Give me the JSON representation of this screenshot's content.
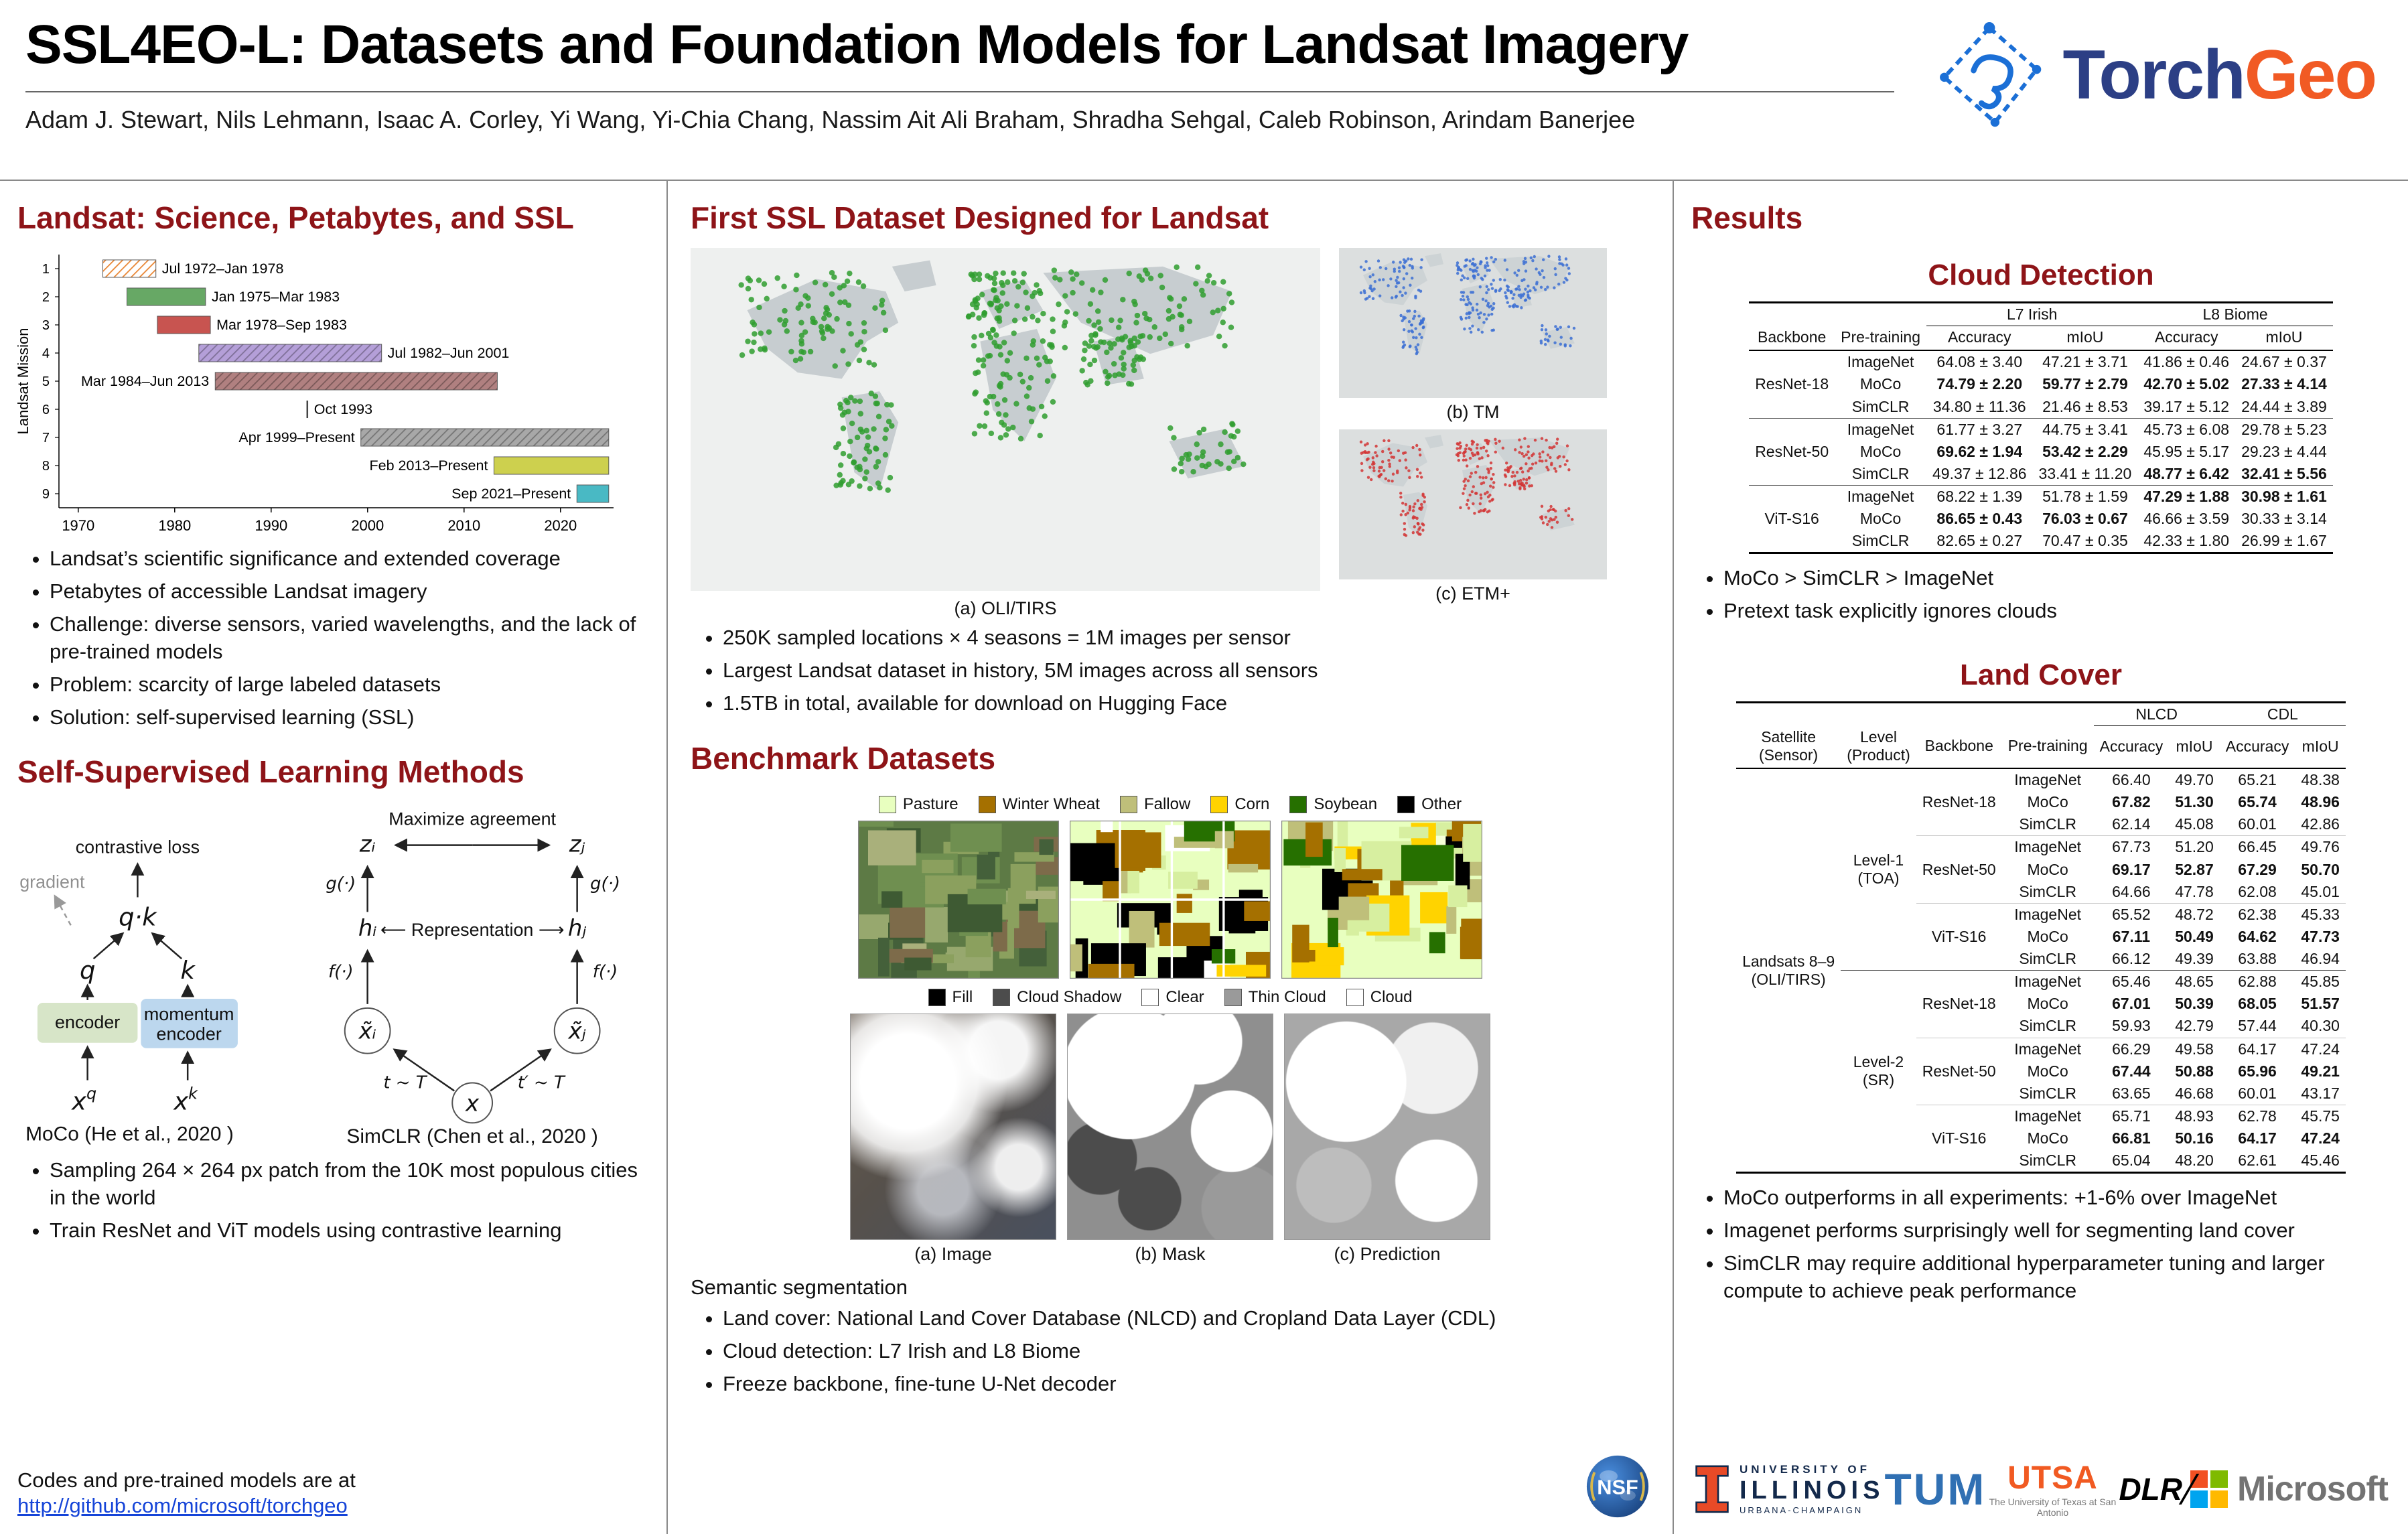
{
  "header": {
    "title": "SSL4EO-L: Datasets and Foundation Models for Landsat Imagery",
    "authors": "Adam J. Stewart, Nils Lehmann, Isaac A. Corley, Yi Wang, Yi-Chia Chang, Nassim Ait Ali Braham, Shradha Sehgal, Caleb Robinson, Arindam Banerjee",
    "torchgeo": {
      "part1": "Torch",
      "part2": "Geo"
    }
  },
  "colors": {
    "heading": "#8e1418",
    "link": "#1544d8",
    "torch_blue": "#2c3f85",
    "geo_orange": "#f15a24",
    "illinois_orange": "#E84A27",
    "illinois_navy": "#13294B",
    "tum_blue": "#3070B3",
    "utsa_orange": "#F15A22",
    "microsoft_squares": [
      "#f25022",
      "#7fba00",
      "#00a4ef",
      "#ffb900"
    ]
  },
  "left": {
    "section1": "Landsat: Science, Petabytes, and SSL",
    "bullets1": [
      "Landsat’s scientific significance and extended coverage",
      "Petabytes of accessible Landsat imagery",
      "Challenge: diverse sensors, varied wavelengths, and the lack of pre-trained models",
      "Problem: scarcity of large labeled datasets",
      "Solution: self-supervised learning (SSL)"
    ],
    "section2": "Self-Supervised Learning Methods",
    "moco": {
      "loss": "contrastive loss",
      "gradient": "gradient",
      "qk": "q·k",
      "q": "q",
      "k": "k",
      "encoder": "encoder",
      "momentum1": "momentum",
      "momentum2": "encoder",
      "x": "x",
      "supq": "q",
      "supk": "k",
      "caption": "MoCo (He et al., 2020 )"
    },
    "simclr": {
      "maximize": "Maximize agreement",
      "zi": "zᵢ",
      "zj": "zⱼ",
      "g1": "g(·)",
      "g2": "g(·)",
      "hi": "hᵢ",
      "hj": "hⱼ",
      "repr": "⟵ Representation ⟶",
      "f1": "f(·)",
      "f2": "f(·)",
      "xi": "x̃ᵢ",
      "xj": "x̃ⱼ",
      "x": "x",
      "t1": "t ~ T",
      "t2": "t′ ~ T",
      "caption": "SimCLR (Chen et al., 2020 )"
    },
    "bullets2": [
      "Sampling 264 × 264 px patch from the 10K most populous cities in the world",
      "Train ResNet and ViT models using contrastive learning"
    ],
    "codes_text": "Codes and pre-trained models are at",
    "codes_link": "http://github.com/microsoft/torchgeo"
  },
  "chart_data": {
    "type": "gantt",
    "title": "Landsat missions timeline",
    "ylabel": "Landsat Mission",
    "x_ticks": [
      1970,
      1980,
      1990,
      2000,
      2010,
      2020
    ],
    "x_range": [
      1968,
      2025.5
    ],
    "bars": [
      {
        "mission": 1,
        "start": 1972.55,
        "end": 1978.05,
        "label": "Jul 1972–Jan 1978",
        "color": "#e8832f",
        "hatch": "light",
        "side": "right"
      },
      {
        "mission": 2,
        "start": 1975.05,
        "end": 1983.2,
        "label": "Jan 1975–Mar 1983",
        "color": "#67a865",
        "hatch": "none",
        "side": "right"
      },
      {
        "mission": 3,
        "start": 1978.2,
        "end": 1983.7,
        "label": "Mar 1978–Sep 1983",
        "color": "#c85450",
        "hatch": "none",
        "side": "right"
      },
      {
        "mission": 4,
        "start": 1982.5,
        "end": 2001.45,
        "label": "Jul 1982–Jun 2001",
        "color": "#b49fd8",
        "hatch": "dark",
        "side": "right"
      },
      {
        "mission": 5,
        "start": 1984.2,
        "end": 2013.45,
        "label": "Mar 1984–Jun 2013",
        "color": "#b08080",
        "hatch": "dark",
        "side": "left"
      },
      {
        "mission": 6,
        "start": 1993.75,
        "end": 1993.75,
        "label": "Oct 1993",
        "color": "#444444",
        "hatch": "none",
        "side": "right",
        "point": true
      },
      {
        "mission": 7,
        "start": 1999.3,
        "end": 2025.0,
        "label": "Apr 1999–Present",
        "color": "#a8a8a8",
        "hatch": "dark",
        "side": "left"
      },
      {
        "mission": 8,
        "start": 2013.1,
        "end": 2025.0,
        "label": "Feb 2013–Present",
        "color": "#cdd04e",
        "hatch": "none",
        "side": "left"
      },
      {
        "mission": 9,
        "start": 2021.7,
        "end": 2025.0,
        "label": "Sep 2021–Present",
        "color": "#49b9c4",
        "hatch": "none",
        "side": "left"
      }
    ]
  },
  "middle": {
    "section1": "First SSL Dataset Designed for Landsat",
    "caption_a": "(a) OLI/TIRS",
    "caption_b": "(b) TM",
    "caption_c": "(c) ETM+",
    "bullets1": [
      "250K sampled locations × 4 seasons = 1M images per sensor",
      "Largest Landsat dataset in history, 5M images across all sensors",
      "1.5TB in total, available for download on Hugging Face"
    ],
    "section2": "Benchmark Datasets",
    "legend_landcover": [
      {
        "label": "Pasture",
        "color": "#e8ffbf"
      },
      {
        "label": "Winter Wheat",
        "color": "#a57000"
      },
      {
        "label": "Fallow",
        "color": "#bfbf7a"
      },
      {
        "label": "Corn",
        "color": "#ffd300"
      },
      {
        "label": "Soybean",
        "color": "#267000"
      },
      {
        "label": "Other",
        "color": "#000000"
      }
    ],
    "legend_cloud": [
      {
        "label": "Fill",
        "color": "#000000"
      },
      {
        "label": "Cloud Shadow",
        "color": "#4c4c4c"
      },
      {
        "label": "Clear",
        "color": "#ffffff"
      },
      {
        "label": "Thin Cloud",
        "color": "#9a9a9a"
      },
      {
        "label": "Cloud",
        "color": "#ffffff"
      }
    ],
    "cloud_captions": [
      "(a) Image",
      "(b) Mask",
      "(c) Prediction"
    ],
    "semantic_title": "Semantic segmentation",
    "bullets2": [
      "Land cover: National Land Cover Database (NLCD) and Cropland Data Layer (CDL)",
      "Cloud detection: L7 Irish and L8 Biome",
      "Freeze backbone, fine-tune U-Net decoder"
    ]
  },
  "right": {
    "section": "Results",
    "cloud_title": "Cloud Detection",
    "cloud_table": {
      "col1": "Backbone",
      "col2": "Pre-training",
      "groups_header": [
        "L7 Irish",
        "L8 Biome"
      ],
      "value_cols": [
        "Accuracy",
        "mIoU",
        "Accuracy",
        "mIoU"
      ],
      "groups": [
        {
          "backbone": "ResNet-18",
          "rows": [
            {
              "pre": "ImageNet",
              "vals": [
                "64.08 ± 3.40",
                "47.21 ± 3.71",
                "41.86 ± 0.46",
                "24.67 ± 0.37"
              ],
              "bold": [
                0,
                0,
                0,
                0
              ]
            },
            {
              "pre": "MoCo",
              "vals": [
                "74.79 ± 2.20",
                "59.77 ± 2.79",
                "42.70 ± 5.02",
                "27.33 ± 4.14"
              ],
              "bold": [
                1,
                1,
                1,
                1
              ]
            },
            {
              "pre": "SimCLR",
              "vals": [
                "34.80 ± 11.36",
                "21.46 ± 8.53",
                "39.17 ± 5.12",
                "24.44 ± 3.89"
              ],
              "bold": [
                0,
                0,
                0,
                0
              ]
            }
          ]
        },
        {
          "backbone": "ResNet-50",
          "rows": [
            {
              "pre": "ImageNet",
              "vals": [
                "61.77 ± 3.27",
                "44.75 ± 3.41",
                "45.73 ± 6.08",
                "29.78 ± 5.23"
              ],
              "bold": [
                0,
                0,
                0,
                0
              ]
            },
            {
              "pre": "MoCo",
              "vals": [
                "69.62 ± 1.94",
                "53.42 ± 2.29",
                "45.95 ± 5.17",
                "29.23 ± 4.44"
              ],
              "bold": [
                1,
                1,
                0,
                0
              ]
            },
            {
              "pre": "SimCLR",
              "vals": [
                "49.37 ± 12.86",
                "33.41 ± 11.20",
                "48.77 ± 6.42",
                "32.41 ± 5.56"
              ],
              "bold": [
                0,
                0,
                1,
                1
              ]
            }
          ]
        },
        {
          "backbone": "ViT-S16",
          "rows": [
            {
              "pre": "ImageNet",
              "vals": [
                "68.22 ± 1.39",
                "51.78 ± 1.59",
                "47.29 ± 1.88",
                "30.98 ± 1.61"
              ],
              "bold": [
                0,
                0,
                1,
                1
              ]
            },
            {
              "pre": "MoCo",
              "vals": [
                "86.65 ± 0.43",
                "76.03 ± 0.67",
                "46.66 ± 3.59",
                "30.33 ± 3.14"
              ],
              "bold": [
                1,
                1,
                0,
                0
              ]
            },
            {
              "pre": "SimCLR",
              "vals": [
                "82.65 ± 0.27",
                "70.47 ± 0.35",
                "42.33 ± 1.80",
                "26.99 ± 1.67"
              ],
              "bold": [
                0,
                0,
                0,
                0
              ]
            }
          ]
        }
      ]
    },
    "cloud_bullets": [
      "MoCo > SimCLR > ImageNet",
      "Pretext task explicitly ignores clouds"
    ],
    "lc_title": "Land Cover",
    "lc_table": {
      "header": {
        "satellite": "Satellite\n(Sensor)",
        "level": "Level\n(Product)",
        "backbone": "Backbone",
        "pre": "Pre-training",
        "groups": [
          "NLCD",
          "CDL"
        ],
        "value_cols": [
          "Accuracy",
          "mIoU",
          "Accuracy",
          "mIoU"
        ]
      },
      "satellite": "Landsats 8–9\n(OLI/TIRS)",
      "levels": [
        {
          "level": "Level-1\n(TOA)",
          "groups": [
            {
              "backbone": "ResNet-18",
              "rows": [
                {
                  "pre": "ImageNet",
                  "vals": [
                    "66.40",
                    "49.70",
                    "65.21",
                    "48.38"
                  ],
                  "bold": [
                    0,
                    0,
                    0,
                    0
                  ]
                },
                {
                  "pre": "MoCo",
                  "vals": [
                    "67.82",
                    "51.30",
                    "65.74",
                    "48.96"
                  ],
                  "bold": [
                    1,
                    1,
                    1,
                    1
                  ]
                },
                {
                  "pre": "SimCLR",
                  "vals": [
                    "62.14",
                    "45.08",
                    "60.01",
                    "42.86"
                  ],
                  "bold": [
                    0,
                    0,
                    0,
                    0
                  ]
                }
              ]
            },
            {
              "backbone": "ResNet-50",
              "rows": [
                {
                  "pre": "ImageNet",
                  "vals": [
                    "67.73",
                    "51.20",
                    "66.45",
                    "49.76"
                  ],
                  "bold": [
                    0,
                    0,
                    0,
                    0
                  ]
                },
                {
                  "pre": "MoCo",
                  "vals": [
                    "69.17",
                    "52.87",
                    "67.29",
                    "50.70"
                  ],
                  "bold": [
                    1,
                    1,
                    1,
                    1
                  ]
                },
                {
                  "pre": "SimCLR",
                  "vals": [
                    "64.66",
                    "47.78",
                    "62.08",
                    "45.01"
                  ],
                  "bold": [
                    0,
                    0,
                    0,
                    0
                  ]
                }
              ]
            },
            {
              "backbone": "ViT-S16",
              "rows": [
                {
                  "pre": "ImageNet",
                  "vals": [
                    "65.52",
                    "48.72",
                    "62.38",
                    "45.33"
                  ],
                  "bold": [
                    0,
                    0,
                    0,
                    0
                  ]
                },
                {
                  "pre": "MoCo",
                  "vals": [
                    "67.11",
                    "50.49",
                    "64.62",
                    "47.73"
                  ],
                  "bold": [
                    1,
                    1,
                    1,
                    1
                  ]
                },
                {
                  "pre": "SimCLR",
                  "vals": [
                    "66.12",
                    "49.39",
                    "63.88",
                    "46.94"
                  ],
                  "bold": [
                    0,
                    0,
                    0,
                    0
                  ]
                }
              ]
            }
          ]
        },
        {
          "level": "Level-2\n(SR)",
          "groups": [
            {
              "backbone": "ResNet-18",
              "rows": [
                {
                  "pre": "ImageNet",
                  "vals": [
                    "65.46",
                    "48.65",
                    "62.88",
                    "45.85"
                  ],
                  "bold": [
                    0,
                    0,
                    0,
                    0
                  ]
                },
                {
                  "pre": "MoCo",
                  "vals": [
                    "67.01",
                    "50.39",
                    "68.05",
                    "51.57"
                  ],
                  "bold": [
                    1,
                    1,
                    1,
                    1
                  ]
                },
                {
                  "pre": "SimCLR",
                  "vals": [
                    "59.93",
                    "42.79",
                    "57.44",
                    "40.30"
                  ],
                  "bold": [
                    0,
                    0,
                    0,
                    0
                  ]
                }
              ]
            },
            {
              "backbone": "ResNet-50",
              "rows": [
                {
                  "pre": "ImageNet",
                  "vals": [
                    "66.29",
                    "49.58",
                    "64.17",
                    "47.24"
                  ],
                  "bold": [
                    0,
                    0,
                    0,
                    0
                  ]
                },
                {
                  "pre": "MoCo",
                  "vals": [
                    "67.44",
                    "50.88",
                    "65.96",
                    "49.21"
                  ],
                  "bold": [
                    1,
                    1,
                    1,
                    1
                  ]
                },
                {
                  "pre": "SimCLR",
                  "vals": [
                    "63.65",
                    "46.68",
                    "60.01",
                    "43.17"
                  ],
                  "bold": [
                    0,
                    0,
                    0,
                    0
                  ]
                }
              ]
            },
            {
              "backbone": "ViT-S16",
              "rows": [
                {
                  "pre": "ImageNet",
                  "vals": [
                    "65.71",
                    "48.93",
                    "62.78",
                    "45.75"
                  ],
                  "bold": [
                    0,
                    0,
                    0,
                    0
                  ]
                },
                {
                  "pre": "MoCo",
                  "vals": [
                    "66.81",
                    "50.16",
                    "64.17",
                    "47.24"
                  ],
                  "bold": [
                    1,
                    1,
                    1,
                    1
                  ]
                },
                {
                  "pre": "SimCLR",
                  "vals": [
                    "65.04",
                    "48.20",
                    "62.61",
                    "45.46"
                  ],
                  "bold": [
                    0,
                    0,
                    0,
                    0
                  ]
                }
              ]
            }
          ]
        }
      ]
    },
    "lc_bullets": [
      "MoCo outperforms in all experiments: +1-6% over ImageNet",
      "Imagenet performs surprisingly well for segmenting land cover",
      "SimCLR may require additional hyperparameter tuning and larger compute to achieve peak performance"
    ]
  },
  "logos": {
    "nsf": "NSF",
    "illinois": {
      "line1": "UNIVERSITY OF",
      "line2": "ILLINOIS",
      "line3": "URBANA-CHAMPAIGN"
    },
    "tum": "TUM",
    "utsa": {
      "name": "UTSA",
      "sub": "The University of Texas at San Antonio"
    },
    "dlr": "DLR",
    "microsoft": "Microsoft"
  }
}
